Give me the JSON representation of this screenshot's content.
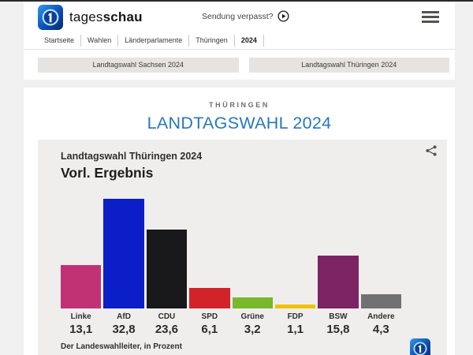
{
  "header": {
    "brand_regular": "tages",
    "brand_bold": "schau",
    "broadcast_link": "Sendung verpasst?"
  },
  "breadcrumb": {
    "items": [
      "Startseite",
      "Wahlen",
      "Länderparlamente",
      "Thüringen",
      "2024"
    ]
  },
  "election_tabs": {
    "sachsen": "Landtagswahl Sachsen 2024",
    "thueringen": "Landtagswahl Thüringen 2024"
  },
  "main": {
    "kicker": "THÜRINGEN",
    "title": "LANDTAGSWAHL 2024"
  },
  "chart_data": {
    "type": "bar",
    "title": "Landtagswahl Thüringen 2024",
    "subtitle": "Vorl. Ergebnis",
    "source": "Der Landeswahlleiter, in Prozent",
    "categories": [
      "Linke",
      "AfD",
      "CDU",
      "SPD",
      "Grüne",
      "FDP",
      "BSW",
      "Andere"
    ],
    "values": [
      13.1,
      32.8,
      23.6,
      6.1,
      3.2,
      1.1,
      15.8,
      4.3
    ],
    "value_labels": [
      "13,1",
      "32,8",
      "23,6",
      "6,1",
      "3,2",
      "1,1",
      "15,8",
      "4,3"
    ],
    "colors": [
      "#c13275",
      "#0c1ec8",
      "#19181b",
      "#d2232a",
      "#78b82a",
      "#f0c300",
      "#7c2363",
      "#717173"
    ],
    "ylim": [
      0,
      35
    ],
    "grid": false,
    "legend": false
  },
  "colors": {
    "accent_blue": "#2478be",
    "page_bg": "#f0f0f0",
    "card_bg": "#efeeec"
  }
}
